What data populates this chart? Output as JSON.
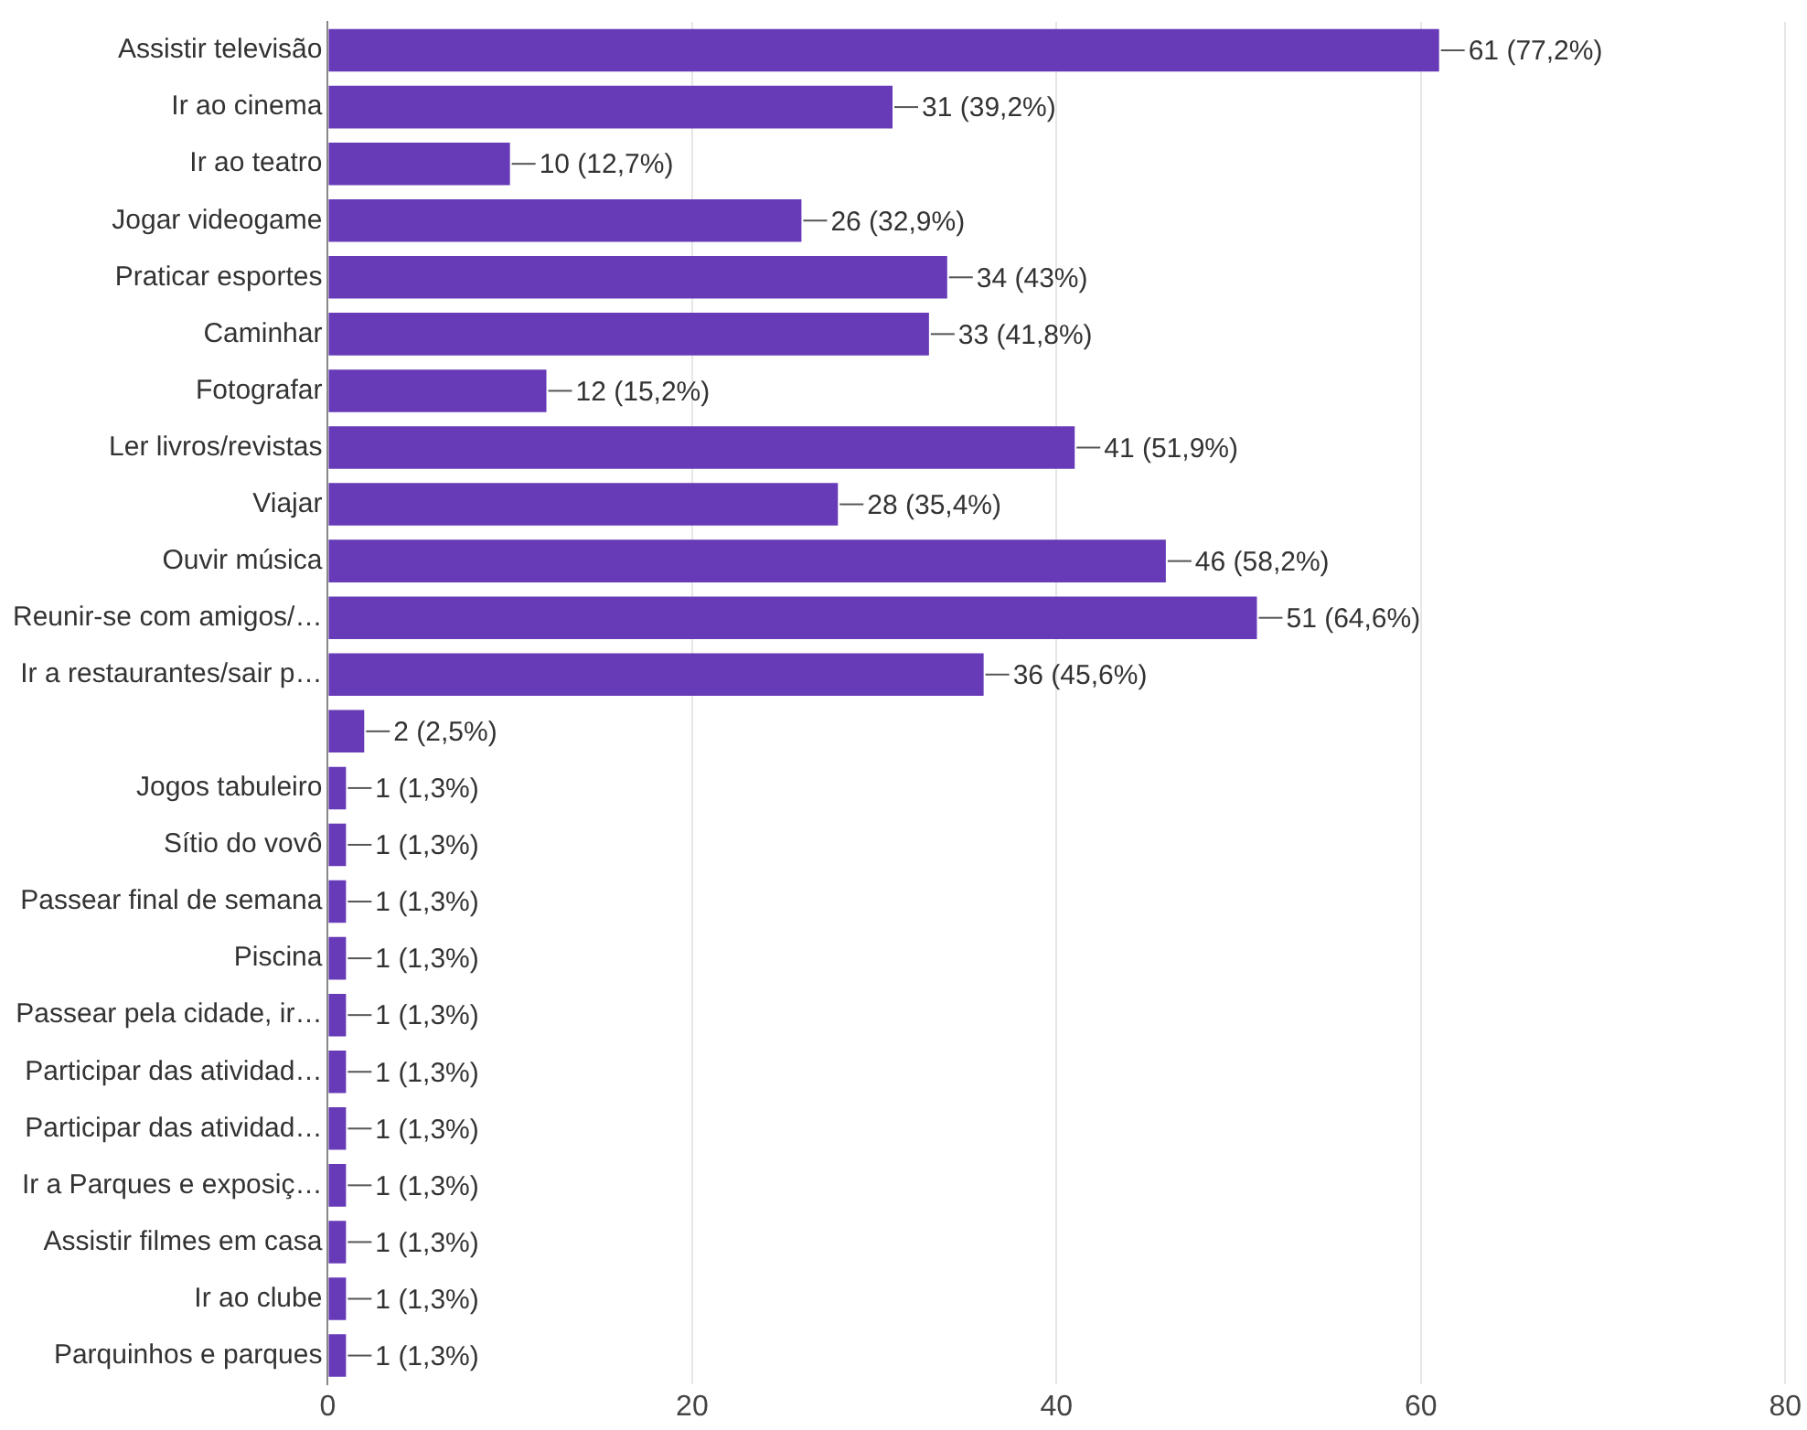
{
  "chart_data": {
    "type": "bar",
    "orientation": "horizontal",
    "categories": [
      "Assistir televisão",
      "Ir ao cinema",
      "Ir ao teatro",
      "Jogar videogame",
      "Praticar esportes",
      "Caminhar",
      "Fotografar",
      "Ler livros/revistas",
      "Viajar",
      "Ouvir música",
      "Reunir-se com amigos/…",
      "Ir a restaurantes/sair p…",
      null,
      "Jogos tabuleiro",
      "Sítio do vovô",
      "Passear final de semana",
      "Piscina",
      "Passear pela cidade, ir…",
      "Participar das atividad…",
      "Participar das atividad…",
      "Ir a Parques e exposiç…",
      "Assistir filmes em casa",
      "Ir ao clube",
      "Parquinhos e parques"
    ],
    "values": [
      61,
      31,
      10,
      26,
      34,
      33,
      12,
      41,
      28,
      46,
      51,
      36,
      2,
      1,
      1,
      1,
      1,
      1,
      1,
      1,
      1,
      1,
      1,
      1
    ],
    "value_labels": [
      "61 (77,2%)",
      "31 (39,2%)",
      "10 (12,7%)",
      "26 (32,9%)",
      "34 (43%)",
      "33 (41,8%)",
      "12 (15,2%)",
      "41 (51,9%)",
      "28 (35,4%)",
      "46 (58,2%)",
      "51 (64,6%)",
      "36 (45,6%)",
      "2 (2,5%)",
      "1 (1,3%)",
      "1 (1,3%)",
      "1 (1,3%)",
      "1 (1,3%)",
      "1 (1,3%)",
      "1 (1,3%)",
      "1 (1,3%)",
      "1 (1,3%)",
      "1 (1,3%)",
      "1 (1,3%)",
      "1 (1,3%)"
    ],
    "color": "#673ab7",
    "xlim": [
      0,
      80
    ],
    "xticks": [
      0,
      20,
      40,
      60,
      80
    ],
    "grid": "x",
    "legend": false
  }
}
